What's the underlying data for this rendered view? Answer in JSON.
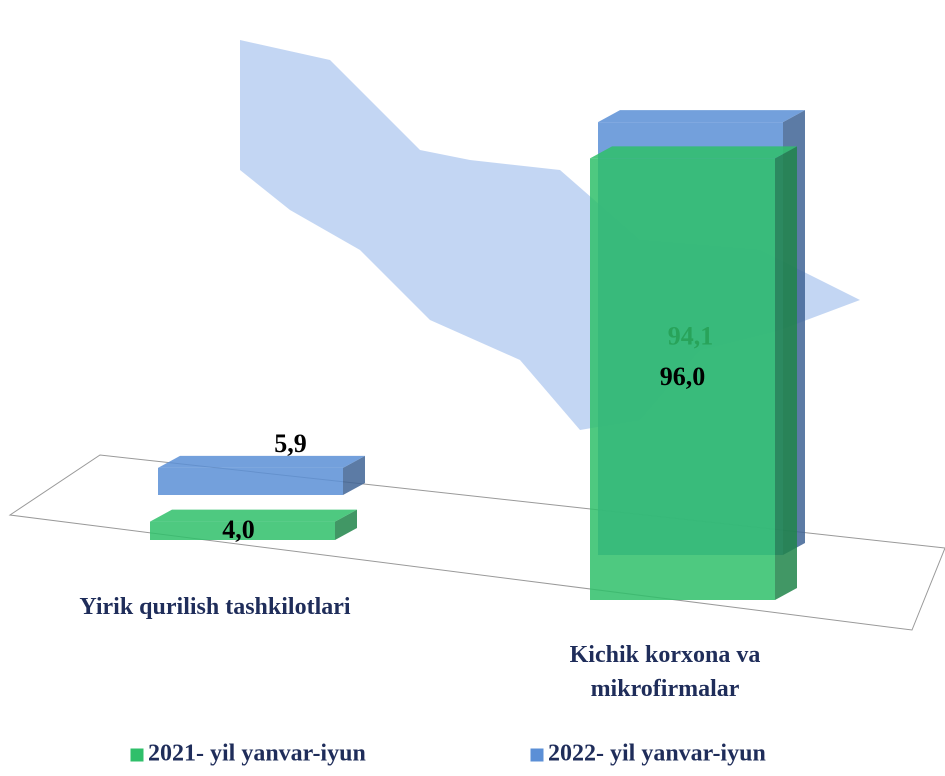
{
  "chart_data": {
    "type": "bar3d",
    "categories": [
      "Yirik qurilish tashkilotlari",
      "Kichik korxona va mikrofirmalar"
    ],
    "ylim": [
      0,
      100
    ],
    "series": [
      {
        "name": "2021- yil yanvar-iyun",
        "color": "#2fbf6a",
        "values": [
          4.0,
          96.0
        ],
        "value_labels": [
          "4,0",
          "96,0"
        ]
      },
      {
        "name": "2022- yil yanvar-iyun",
        "color": "#5b8fd6",
        "values": [
          5.9,
          94.1
        ],
        "value_labels": [
          "5,9",
          "94,1"
        ]
      }
    ]
  }
}
